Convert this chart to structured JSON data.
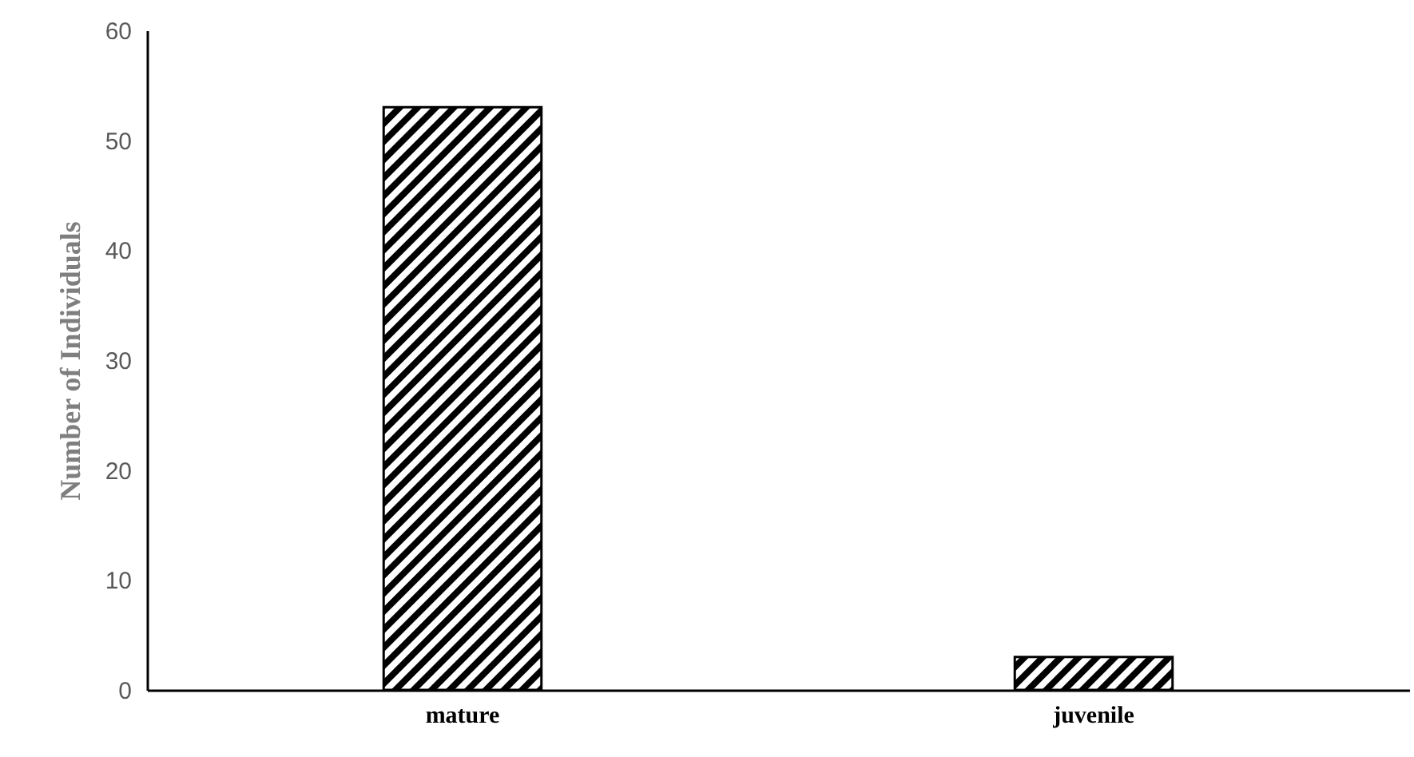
{
  "chart_data": {
    "type": "bar",
    "ylabel": "Number of Individuals",
    "categories": [
      "mature",
      "juvenile"
    ],
    "values": [
      53,
      3
    ],
    "color": "#000000",
    "ylim": [
      0,
      60
    ],
    "yticks": [
      0,
      10,
      20,
      30,
      40,
      50,
      60
    ],
    "grid": false
  }
}
